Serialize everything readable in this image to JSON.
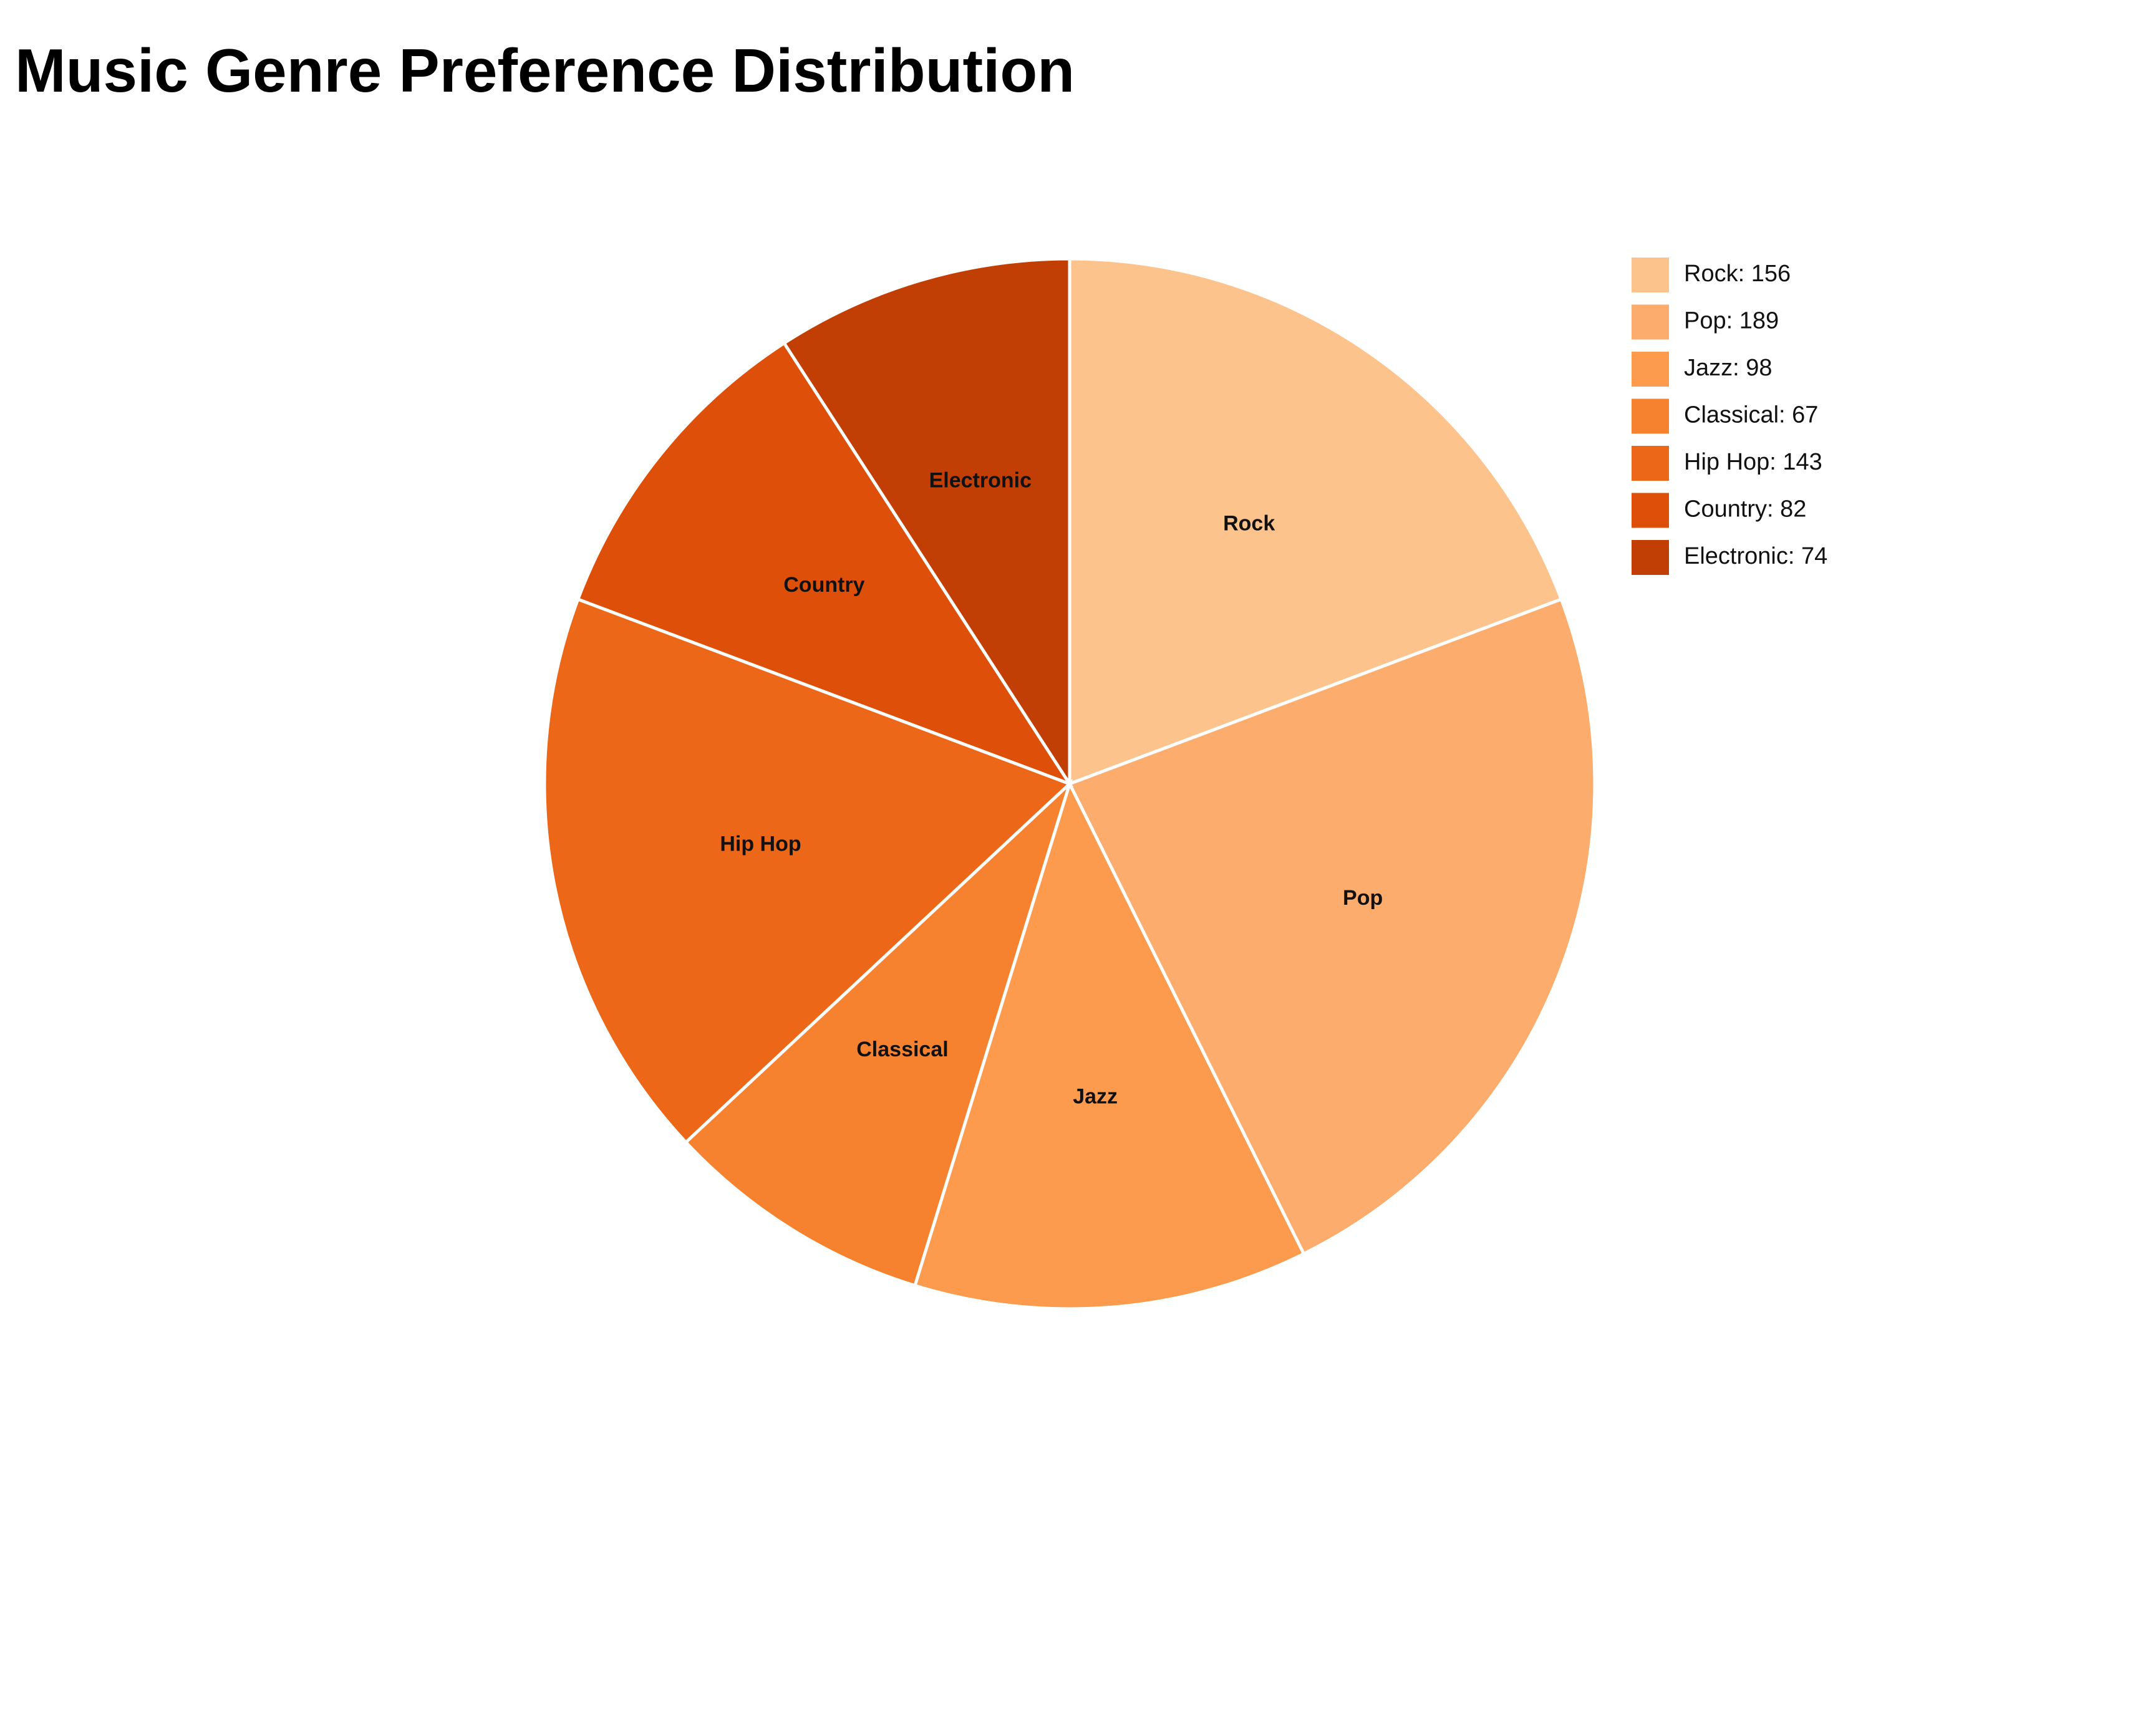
{
  "chart_data": {
    "type": "pie",
    "title": "Music Genre Preference Distribution",
    "categories": [
      "Rock",
      "Pop",
      "Jazz",
      "Classical",
      "Hip Hop",
      "Country",
      "Electronic"
    ],
    "values": [
      156,
      189,
      98,
      67,
      143,
      82,
      74
    ],
    "colors": [
      "#fdc38d",
      "#fcad6d",
      "#fc9a4e",
      "#f6822f",
      "#ec6717",
      "#de5009",
      "#c13e04"
    ],
    "legend_entries": [
      "Rock: 156",
      "Pop: 189",
      "Jazz: 98",
      "Classical: 67",
      "Hip Hop: 143",
      "Country: 82",
      "Electronic: 74"
    ],
    "legend_position": "top-right",
    "slice_border_color": "#ffffff",
    "start": "12 o'clock",
    "direction": "clockwise"
  }
}
